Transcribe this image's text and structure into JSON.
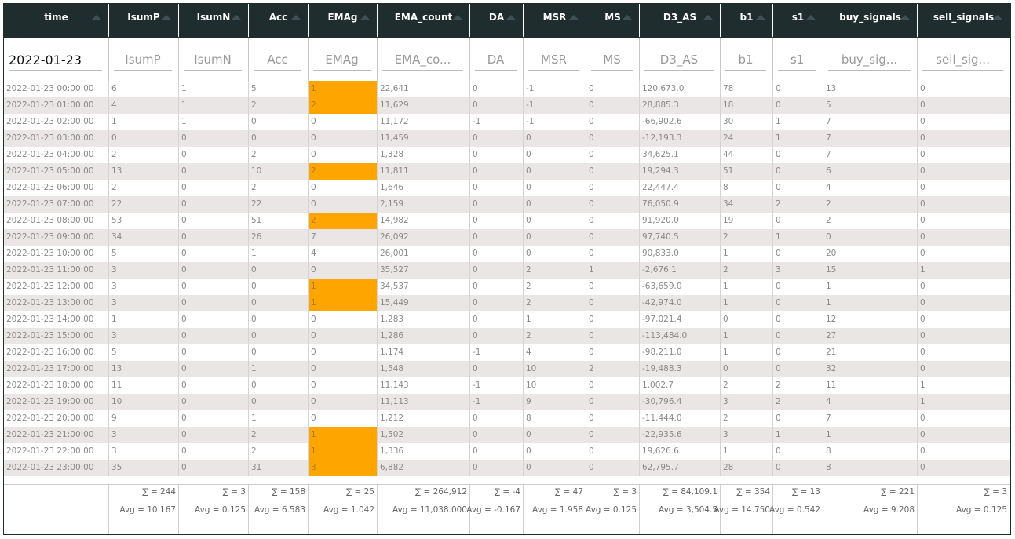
{
  "columns": [
    "time",
    "IsumP",
    "IsumN",
    "Acc",
    "EMAg",
    "EMA_count",
    "DA",
    "MSR",
    "MS",
    "D3_AS",
    "b1",
    "s1",
    "buy_signals",
    "sell_signals"
  ],
  "filters": {
    "time": "2022-01-23",
    "placeholders": [
      "",
      "IsumP",
      "IsumN",
      "Acc",
      "EMAg",
      "EMA_co...",
      "DA",
      "MSR",
      "MS",
      "D3_AS",
      "b1",
      "s1",
      "buy_sig...",
      "sell_sig..."
    ]
  },
  "highlight_color": "#ffa500",
  "header_color": "#1f2d2f",
  "rows": [
    {
      "c": [
        "2022-01-23 00:00:00",
        "6",
        "1",
        "5",
        "1",
        "22,641",
        "0",
        "-1",
        "0",
        "120,673.0",
        "78",
        "0",
        "13",
        "0"
      ],
      "hl": true
    },
    {
      "c": [
        "2022-01-23 01:00:00",
        "4",
        "1",
        "2",
        "2",
        "11,629",
        "0",
        "-1",
        "0",
        "28,885.3",
        "18",
        "0",
        "5",
        "0"
      ],
      "hl": true
    },
    {
      "c": [
        "2022-01-23 02:00:00",
        "1",
        "1",
        "0",
        "0",
        "11,172",
        "-1",
        "-1",
        "0",
        "-66,902.6",
        "30",
        "1",
        "7",
        "0"
      ],
      "hl": false
    },
    {
      "c": [
        "2022-01-23 03:00:00",
        "0",
        "0",
        "0",
        "0",
        "11,459",
        "0",
        "0",
        "0",
        "-12,193.3",
        "24",
        "1",
        "7",
        "0"
      ],
      "hl": false
    },
    {
      "c": [
        "2022-01-23 04:00:00",
        "2",
        "0",
        "2",
        "0",
        "1,328",
        "0",
        "0",
        "0",
        "34,625.1",
        "44",
        "0",
        "7",
        "0"
      ],
      "hl": false
    },
    {
      "c": [
        "2022-01-23 05:00:00",
        "13",
        "0",
        "10",
        "2",
        "11,811",
        "0",
        "0",
        "0",
        "19,294.3",
        "51",
        "0",
        "6",
        "0"
      ],
      "hl": true
    },
    {
      "c": [
        "2022-01-23 06:00:00",
        "2",
        "0",
        "2",
        "0",
        "1,646",
        "0",
        "0",
        "0",
        "22,447.4",
        "8",
        "0",
        "4",
        "0"
      ],
      "hl": false
    },
    {
      "c": [
        "2022-01-23 07:00:00",
        "22",
        "0",
        "22",
        "0",
        "2,159",
        "0",
        "0",
        "0",
        "76,050.9",
        "34",
        "2",
        "2",
        "0"
      ],
      "hl": false
    },
    {
      "c": [
        "2022-01-23 08:00:00",
        "53",
        "0",
        "51",
        "2",
        "14,982",
        "0",
        "0",
        "0",
        "91,920.0",
        "19",
        "0",
        "2",
        "0"
      ],
      "hl": true
    },
    {
      "c": [
        "2022-01-23 09:00:00",
        "34",
        "0",
        "26",
        "7",
        "26,092",
        "0",
        "0",
        "0",
        "97,740.5",
        "2",
        "1",
        "0",
        "0"
      ],
      "hl": false
    },
    {
      "c": [
        "2022-01-23 10:00:00",
        "5",
        "0",
        "1",
        "4",
        "26,001",
        "0",
        "0",
        "0",
        "90,833.0",
        "1",
        "0",
        "20",
        "0"
      ],
      "hl": false
    },
    {
      "c": [
        "2022-01-23 11:00:00",
        "3",
        "0",
        "0",
        "0",
        "35,527",
        "0",
        "2",
        "1",
        "-2,676.1",
        "2",
        "3",
        "15",
        "1"
      ],
      "hl": false
    },
    {
      "c": [
        "2022-01-23 12:00:00",
        "3",
        "0",
        "0",
        "1",
        "34,537",
        "0",
        "2",
        "0",
        "-63,659.0",
        "1",
        "0",
        "1",
        "0"
      ],
      "hl": true
    },
    {
      "c": [
        "2022-01-23 13:00:00",
        "3",
        "0",
        "0",
        "1",
        "15,449",
        "0",
        "2",
        "0",
        "-42,974.0",
        "1",
        "0",
        "1",
        "0"
      ],
      "hl": true
    },
    {
      "c": [
        "2022-01-23 14:00:00",
        "1",
        "0",
        "0",
        "0",
        "1,283",
        "0",
        "1",
        "0",
        "-97,021.4",
        "0",
        "0",
        "12",
        "0"
      ],
      "hl": false
    },
    {
      "c": [
        "2022-01-23 15:00:00",
        "3",
        "0",
        "0",
        "0",
        "1,286",
        "0",
        "2",
        "0",
        "-113,484.0",
        "1",
        "0",
        "27",
        "0"
      ],
      "hl": false
    },
    {
      "c": [
        "2022-01-23 16:00:00",
        "5",
        "0",
        "0",
        "0",
        "1,174",
        "-1",
        "4",
        "0",
        "-98,211.0",
        "1",
        "0",
        "21",
        "0"
      ],
      "hl": false
    },
    {
      "c": [
        "2022-01-23 17:00:00",
        "13",
        "0",
        "1",
        "0",
        "1,548",
        "0",
        "10",
        "2",
        "-19,488.3",
        "0",
        "0",
        "32",
        "0"
      ],
      "hl": false
    },
    {
      "c": [
        "2022-01-23 18:00:00",
        "11",
        "0",
        "0",
        "0",
        "11,143",
        "-1",
        "10",
        "0",
        "1,002.7",
        "2",
        "2",
        "11",
        "1"
      ],
      "hl": false
    },
    {
      "c": [
        "2022-01-23 19:00:00",
        "10",
        "0",
        "0",
        "0",
        "11,113",
        "-1",
        "9",
        "0",
        "-30,796.4",
        "3",
        "2",
        "4",
        "1"
      ],
      "hl": false
    },
    {
      "c": [
        "2022-01-23 20:00:00",
        "9",
        "0",
        "1",
        "0",
        "1,212",
        "0",
        "8",
        "0",
        "-11,444.0",
        "2",
        "0",
        "7",
        "0"
      ],
      "hl": false
    },
    {
      "c": [
        "2022-01-23 21:00:00",
        "3",
        "0",
        "2",
        "1",
        "1,502",
        "0",
        "0",
        "0",
        "-22,935.6",
        "3",
        "1",
        "1",
        "0"
      ],
      "hl": true
    },
    {
      "c": [
        "2022-01-23 22:00:00",
        "3",
        "0",
        "2",
        "1",
        "1,336",
        "0",
        "0",
        "0",
        "19,626.6",
        "1",
        "0",
        "8",
        "0"
      ],
      "hl": true
    },
    {
      "c": [
        "2022-01-23 23:00:00",
        "35",
        "0",
        "31",
        "3",
        "6,882",
        "0",
        "0",
        "0",
        "62,795.7",
        "28",
        "0",
        "8",
        "0"
      ],
      "hl": true
    }
  ],
  "sums": [
    "",
    "∑ = 244",
    "∑ = 3",
    "∑ = 158",
    "∑ = 25",
    "∑ = 264,912",
    "∑ = -4",
    "∑ = 47",
    "∑ = 3",
    "∑ = 84,109.1",
    "∑ = 354",
    "∑ = 13",
    "∑ = 221",
    "∑ = 3"
  ],
  "avgs": [
    "",
    "Avg = 10.167",
    "Avg = 0.125",
    "Avg = 6.583",
    "Avg = 1.042",
    "Avg = 11,038.000",
    "Avg = -0.167",
    "Avg = 1.958",
    "Avg = 0.125",
    "Avg = 3,504.5",
    "Avg = 14.750",
    "Avg = 0.542",
    "Avg = 9.208",
    "Avg = 0.125"
  ]
}
